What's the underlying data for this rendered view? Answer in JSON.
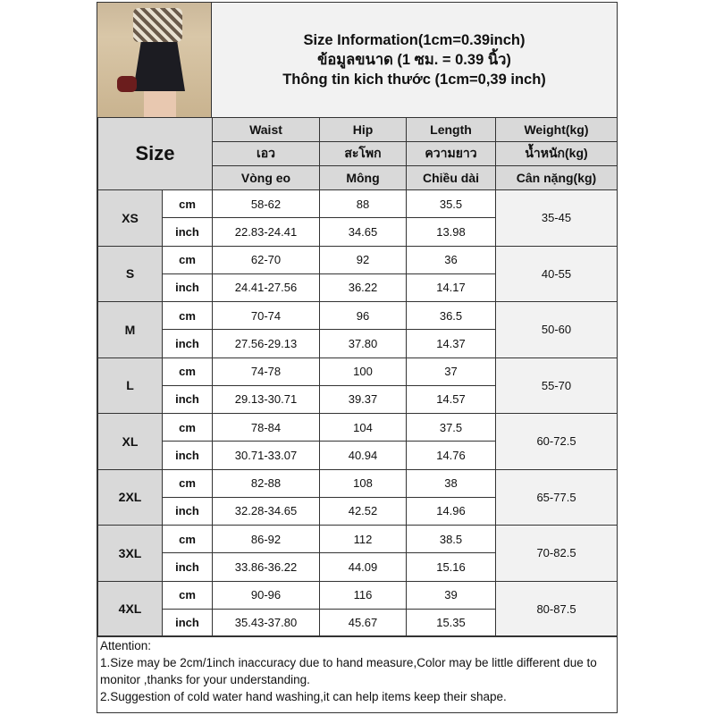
{
  "title": {
    "line1": "Size Information(1cm=0.39inch)",
    "line2": "ข้อมูลขนาด (1 ซม. = 0.39 นิ้ว)",
    "line3": "Thông tin kich thước (1cm=0,39 inch)"
  },
  "header": {
    "size_label": "Size",
    "columns": [
      {
        "en": "Waist",
        "th": "เอว",
        "vi": "Vòng eo"
      },
      {
        "en": "Hip",
        "th": "สะโพก",
        "vi": "Mông"
      },
      {
        "en": "Length",
        "th": "ความยาว",
        "vi": "Chiều dài"
      },
      {
        "en": "Weight(kg)",
        "th": "น้ำหนัก(kg)",
        "vi": "Cân nặng(kg)"
      }
    ]
  },
  "units": {
    "cm": "cm",
    "inch": "inch"
  },
  "rows": [
    {
      "size": "XS",
      "cm": [
        "58-62",
        "88",
        "35.5"
      ],
      "inch": [
        "22.83-24.41",
        "34.65",
        "13.98"
      ],
      "weight": "35-45"
    },
    {
      "size": "S",
      "cm": [
        "62-70",
        "92",
        "36"
      ],
      "inch": [
        "24.41-27.56",
        "36.22",
        "14.17"
      ],
      "weight": "40-55"
    },
    {
      "size": "M",
      "cm": [
        "70-74",
        "96",
        "36.5"
      ],
      "inch": [
        "27.56-29.13",
        "37.80",
        "14.37"
      ],
      "weight": "50-60"
    },
    {
      "size": "L",
      "cm": [
        "74-78",
        "100",
        "37"
      ],
      "inch": [
        "29.13-30.71",
        "39.37",
        "14.57"
      ],
      "weight": "55-70"
    },
    {
      "size": "XL",
      "cm": [
        "78-84",
        "104",
        "37.5"
      ],
      "inch": [
        "30.71-33.07",
        "40.94",
        "14.76"
      ],
      "weight": "60-72.5"
    },
    {
      "size": "2XL",
      "cm": [
        "82-88",
        "108",
        "38"
      ],
      "inch": [
        "32.28-34.65",
        "42.52",
        "14.96"
      ],
      "weight": "65-77.5"
    },
    {
      "size": "3XL",
      "cm": [
        "86-92",
        "112",
        "38.5"
      ],
      "inch": [
        "33.86-36.22",
        "44.09",
        "15.16"
      ],
      "weight": "70-82.5"
    },
    {
      "size": "4XL",
      "cm": [
        "90-96",
        "116",
        "39"
      ],
      "inch": [
        "35.43-37.80",
        "45.67",
        "15.35"
      ],
      "weight": "80-87.5"
    }
  ],
  "attention": {
    "heading": "Attention:",
    "items": [
      "1.Size may be 2cm/1inch inaccuracy due to hand measure,Color may be little different due to monitor ,thanks for your understanding.",
      "2.Suggestion of cold water hand washing,it can help items keep their shape."
    ]
  }
}
